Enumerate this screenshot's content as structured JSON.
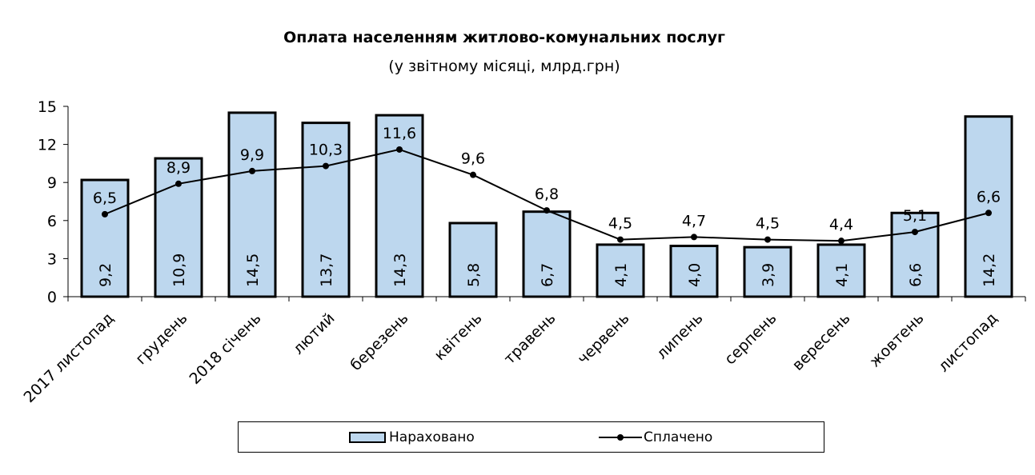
{
  "chart_data": {
    "type": "bar+line",
    "title": "Оплата населенням житлово-комунальних послуг",
    "subtitle": "(у звітному місяці, млрд.грн)",
    "categories": [
      "2017 листопад",
      "грудень",
      "2018 січень",
      "лютий",
      "березень",
      "квітень",
      "травень",
      "червень",
      "липень",
      "серпень",
      "вересень",
      "жовтень",
      "листопад"
    ],
    "series": [
      {
        "name": "Нараховано",
        "type": "bar",
        "color": "#bdd7ee",
        "values": [
          9.2,
          10.9,
          14.5,
          13.7,
          14.3,
          5.8,
          6.7,
          4.1,
          4.0,
          3.9,
          4.1,
          6.6,
          14.2
        ],
        "labels": [
          "9,2",
          "10,9",
          "14,5",
          "13,7",
          "14,3",
          "5,8",
          "6,7",
          "4,1",
          "4,0",
          "3,9",
          "4,1",
          "6,6",
          "14,2"
        ]
      },
      {
        "name": "Сплачено",
        "type": "line",
        "color": "#000000",
        "values": [
          6.5,
          8.9,
          9.9,
          10.3,
          11.6,
          9.6,
          6.8,
          4.5,
          4.7,
          4.5,
          4.4,
          5.1,
          6.6
        ],
        "labels": [
          "6,5",
          "8,9",
          "9,9",
          "10,3",
          "11,6",
          "9,6",
          "6,8",
          "4,5",
          "4,7",
          "4,5",
          "4,4",
          "5,1",
          "6,6"
        ]
      }
    ],
    "ylim": [
      0,
      15
    ],
    "yticks": [
      0,
      3,
      6,
      9,
      12,
      15
    ],
    "grid": false,
    "legend_position": "bottom"
  }
}
